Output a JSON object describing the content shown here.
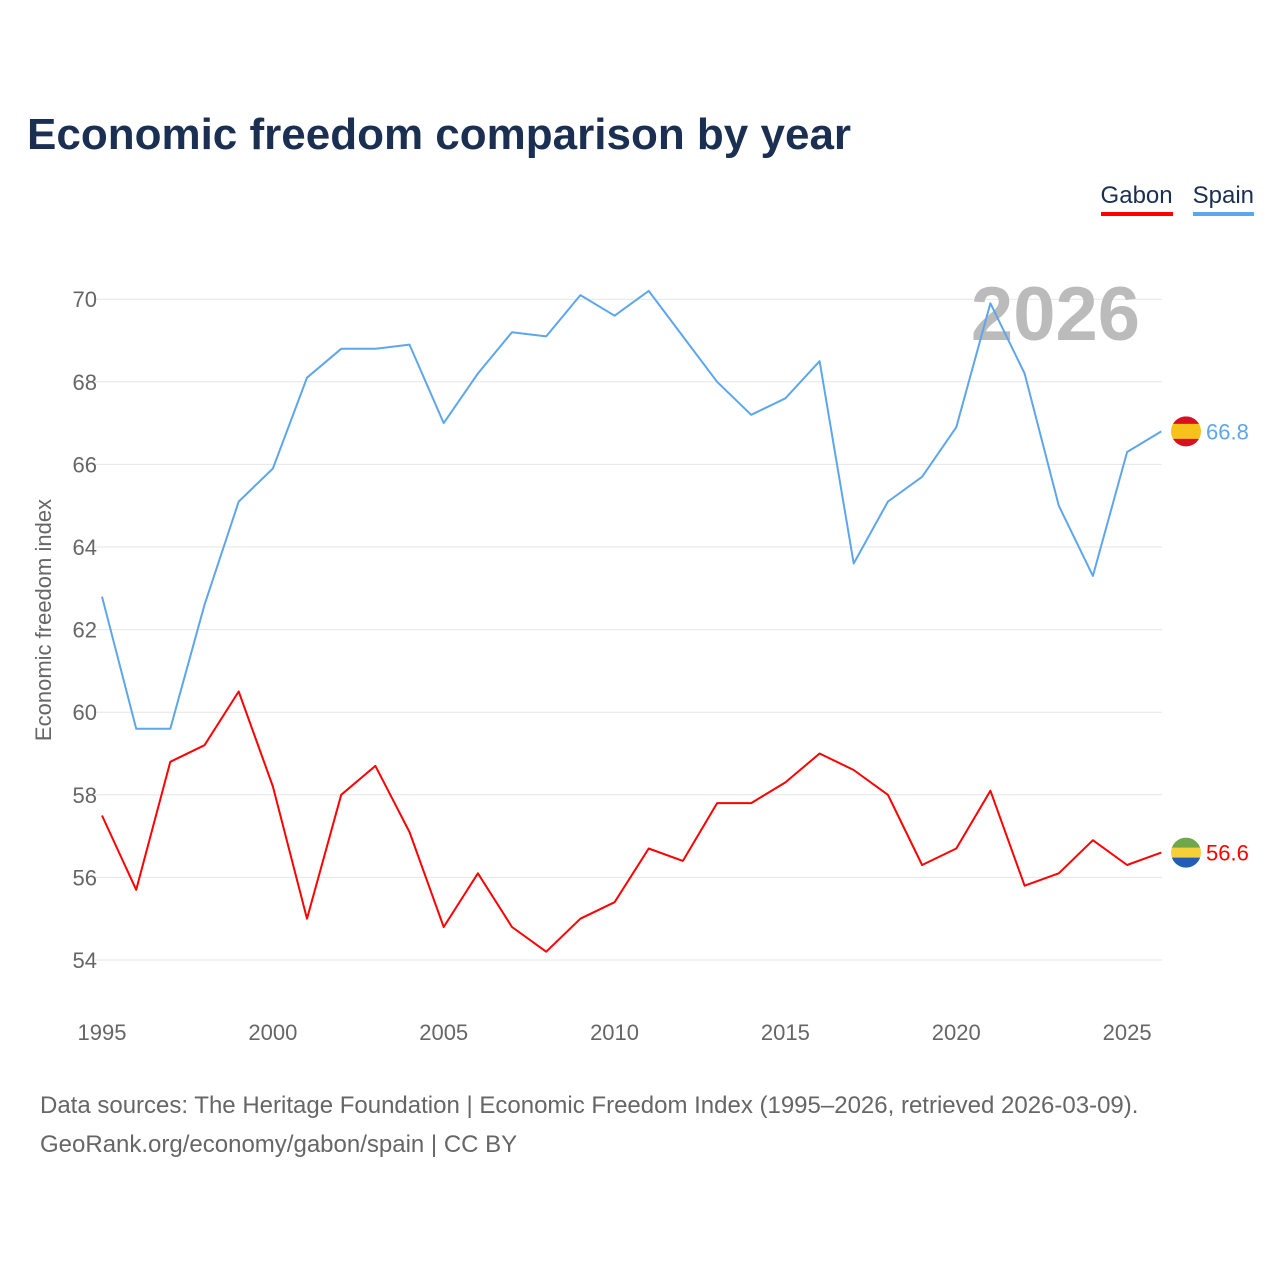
{
  "chart_data": {
    "type": "line",
    "title": "Economic freedom comparison by year",
    "xlabel": "",
    "ylabel": "Economic freedom index",
    "xlim": [
      1995,
      2026
    ],
    "ylim": [
      53,
      70.6
    ],
    "yticks": [
      54,
      56,
      58,
      60,
      62,
      64,
      66,
      68,
      70
    ],
    "xticks": [
      1995,
      2000,
      2005,
      2010,
      2015,
      2020,
      2025
    ],
    "grid": true,
    "legend_position": "top-right",
    "watermark_year": "2026",
    "x": [
      1995,
      1996,
      1997,
      1998,
      1999,
      2000,
      2001,
      2002,
      2003,
      2004,
      2005,
      2006,
      2007,
      2008,
      2009,
      2010,
      2011,
      2012,
      2013,
      2014,
      2015,
      2016,
      2017,
      2018,
      2019,
      2020,
      2021,
      2022,
      2023,
      2024,
      2025,
      2026
    ],
    "series": [
      {
        "name": "Gabon",
        "color": "#ff0000",
        "end_label": "56.6",
        "values": [
          57.5,
          55.7,
          58.8,
          59.2,
          60.5,
          58.2,
          55.0,
          58.0,
          58.7,
          57.1,
          54.8,
          56.1,
          54.8,
          54.2,
          55.0,
          55.4,
          56.7,
          56.4,
          57.8,
          57.8,
          58.3,
          59.0,
          58.6,
          58.0,
          56.3,
          56.7,
          58.1,
          55.8,
          56.1,
          56.9,
          56.3,
          56.6
        ]
      },
      {
        "name": "Spain",
        "color": "#5ea6ec",
        "end_label": "66.8",
        "values": [
          62.8,
          59.6,
          59.6,
          62.6,
          65.1,
          65.9,
          68.1,
          68.8,
          68.8,
          68.9,
          67.0,
          68.2,
          69.2,
          69.1,
          70.1,
          69.6,
          70.2,
          69.1,
          68.0,
          67.2,
          67.6,
          68.5,
          63.6,
          65.1,
          65.7,
          66.9,
          69.9,
          68.2,
          65.0,
          63.3,
          66.3,
          66.8
        ]
      }
    ]
  },
  "footer": {
    "line1": "Data sources: The Heritage Foundation | Economic Freedom Index (1995–2026, retrieved 2026-03-09).",
    "line2": "GeoRank.org/economy/gabon/spain | CC BY"
  }
}
